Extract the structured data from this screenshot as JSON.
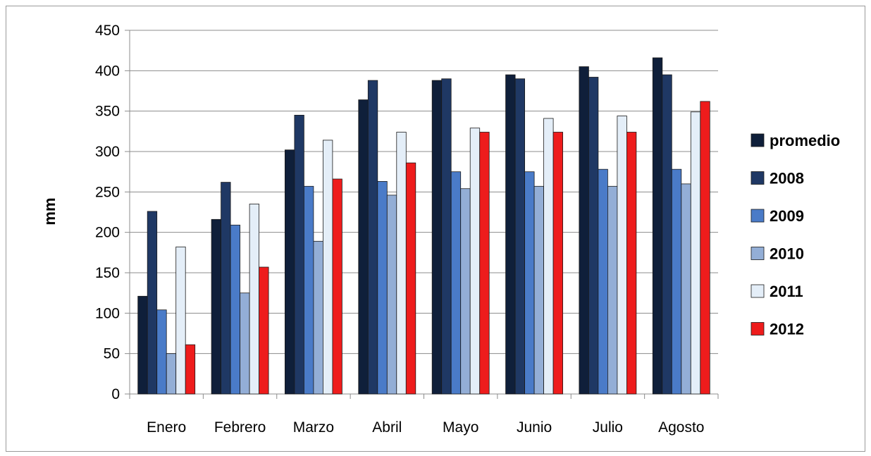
{
  "chart_data": {
    "type": "bar",
    "title": "",
    "xlabel": "",
    "ylabel": "mm",
    "ylim": [
      0,
      450
    ],
    "yticks": [
      "0",
      "50",
      "100",
      "150",
      "200",
      "250",
      "300",
      "350",
      "400",
      "450"
    ],
    "grid": true,
    "legend_position": "right",
    "categories": [
      "Enero",
      "Febrero",
      "Marzo",
      "Abril",
      "Mayo",
      "Junio",
      "Julio",
      "Agosto"
    ],
    "series": [
      {
        "name": "promedio",
        "color": "#0f1f3a",
        "values": [
          121,
          216,
          302,
          364,
          388,
          395,
          405,
          416
        ]
      },
      {
        "name": "2008",
        "color": "#1f3864",
        "values": [
          226,
          262,
          345,
          388,
          390,
          390,
          392,
          395
        ]
      },
      {
        "name": "2009",
        "color": "#4a7bc8",
        "values": [
          104,
          209,
          257,
          263,
          275,
          275,
          278,
          278
        ]
      },
      {
        "name": "2010",
        "color": "#93aed6",
        "values": [
          50,
          125,
          189,
          246,
          254,
          257,
          257,
          260
        ]
      },
      {
        "name": "2011",
        "color": "#e4eef8",
        "values": [
          182,
          235,
          314,
          324,
          329,
          341,
          344,
          349
        ]
      },
      {
        "name": "2012",
        "color": "#ee1c1c",
        "values": [
          61,
          157,
          266,
          286,
          324,
          324,
          324,
          362
        ]
      }
    ]
  }
}
